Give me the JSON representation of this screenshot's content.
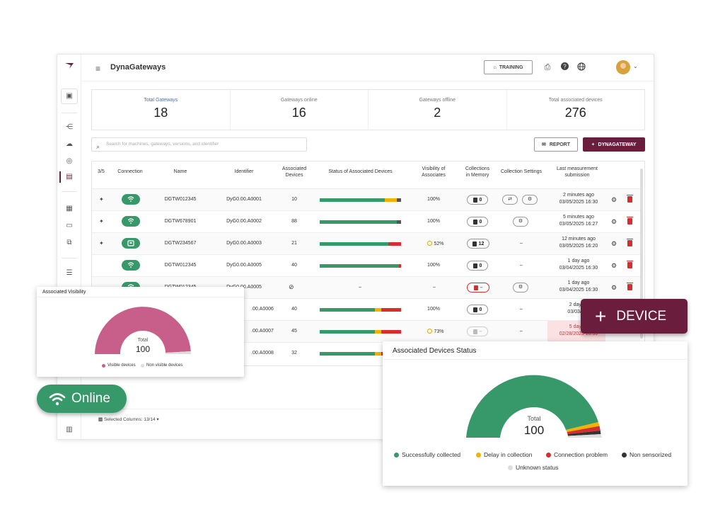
{
  "app": {
    "title": "DynaGateways"
  },
  "topbar": {
    "training_label": "TRAINING"
  },
  "stats": [
    {
      "label": "Total Gateways",
      "value": "18"
    },
    {
      "label": "Gateways online",
      "value": "16"
    },
    {
      "label": "Gateways offline",
      "value": "2"
    },
    {
      "label": "Total associated devices",
      "value": "276"
    }
  ],
  "search": {
    "placeholder": "Search for machines, gateways, versions, and identifier"
  },
  "actions": {
    "report_label": "REPORT",
    "new_label": "DYNAGATEWAY"
  },
  "table": {
    "headers": {
      "pin": "3/5",
      "connection": "Connection",
      "name": "Name",
      "identifier": "Identifier",
      "associated_1": "Associated",
      "associated_2": "Devices",
      "status": "Status of Associated Devices",
      "visibility_1": "Visibility of",
      "visibility_2": "Associates",
      "collections_1": "Collections",
      "collections_2": "in Memory",
      "settings": "Collection Settings",
      "last_1": "Last measurement",
      "last_2": "submission"
    },
    "rows": [
      {
        "name": "DGTW012345",
        "identifier": "DyG0.00.A0001",
        "devices": "10",
        "visibility": "100%",
        "memory": "0",
        "last_1": "2 minutes ago",
        "last_2": "03/05/2025 16:30"
      },
      {
        "name": "DGTW678901",
        "identifier": "DyG0.00.A0002",
        "devices": "88",
        "visibility": "100%",
        "memory": "0",
        "last_1": "5 minutes ago",
        "last_2": "03/05/2025 16:27"
      },
      {
        "name": "DGTW234567",
        "identifier": "DyG0.00.A0003",
        "devices": "21",
        "visibility": "52%",
        "memory": "12",
        "settings": "–",
        "last_1": "12 minutes ago",
        "last_2": "03/05/2025 16:20"
      },
      {
        "name": "DGTW012345",
        "identifier": "DyG0.00.A0005",
        "devices": "40",
        "visibility": "100%",
        "memory": "0",
        "settings": "–",
        "last_1": "1 day ago",
        "last_2": "03/04/2025 16:30"
      },
      {
        "name": "DGTW012345",
        "identifier": "DyG0.00.A0005",
        "status_text": "–",
        "visibility": "–",
        "memory": "–",
        "last_1": "1 day ago",
        "last_2": "03/04/2025 16:30"
      },
      {
        "identifier": ".00.A0006",
        "devices": "40",
        "visibility": "100%",
        "memory": "0",
        "settings": "–",
        "last_1": "2 days a",
        "last_2": "03/03/202"
      },
      {
        "identifier": ".00.A0007",
        "devices": "45",
        "visibility": "73%",
        "memory": "–",
        "settings": "–",
        "last_1": "5 days a",
        "last_2": "02/28/2025 16:30"
      },
      {
        "identifier": ".00.A0008",
        "devices": "32"
      }
    ]
  },
  "footer": {
    "columns_label": "Selected Columns: 13/14"
  },
  "visibility_card": {
    "title": "Associated Visibility",
    "total_label": "Total",
    "total_value": "100",
    "legend": [
      {
        "label": "Visible devices",
        "color": "#c85f8a"
      },
      {
        "label": "Non visible devices",
        "color": "#dddddd"
      }
    ]
  },
  "status_card": {
    "title": "Associated Devices Status",
    "total_label": "Total",
    "total_value": "100",
    "legend": [
      {
        "label": "Successfully collected",
        "color": "#37996a"
      },
      {
        "label": "Delay in collection",
        "color": "#f2b200"
      },
      {
        "label": "Connection problem",
        "color": "#d32f2f"
      },
      {
        "label": "Non sensorized",
        "color": "#333333"
      },
      {
        "label": "Unknown status",
        "color": "#dddddd"
      }
    ]
  },
  "badges": {
    "online_label": "Online",
    "device_label": "DEVICE"
  },
  "colors": {
    "brand": "#6b1d3e",
    "online": "#37996a",
    "delay": "#f2b200",
    "problem": "#d32f2f"
  }
}
